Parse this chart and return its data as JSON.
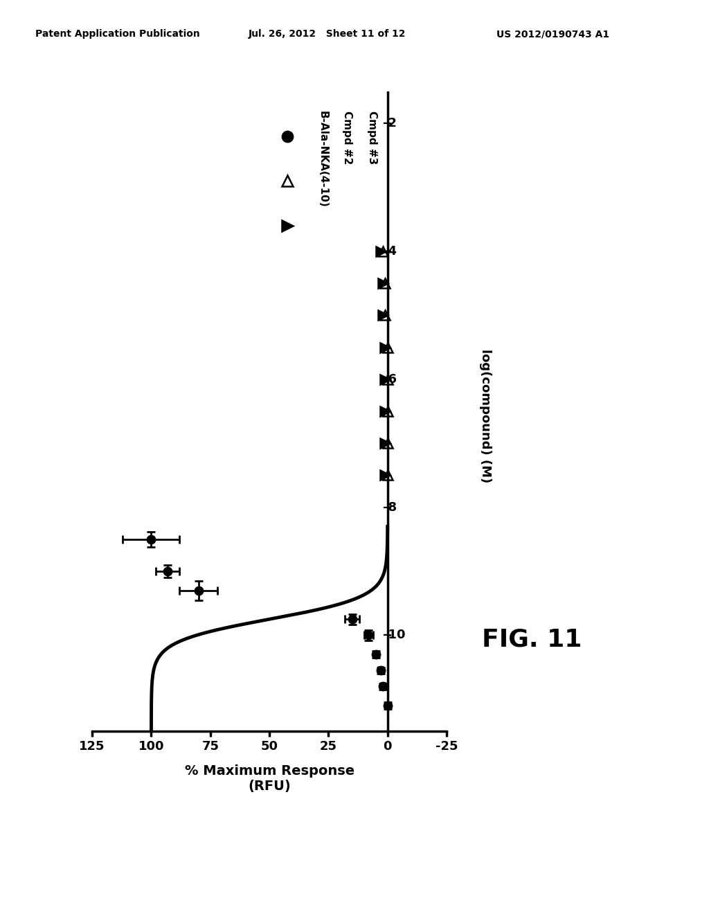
{
  "title": "FIG. 11",
  "xlabel": "% Maximum Response\n(RFU)",
  "ylabel": "log(compound) (M)",
  "xlim": [
    125,
    -25
  ],
  "ylim": [
    -11.5,
    -1.5
  ],
  "yticks": [
    -10,
    -8,
    -6,
    -4,
    -2
  ],
  "xticks": [
    125,
    100,
    75,
    50,
    25,
    0,
    -25
  ],
  "bg_color": "#ffffff",
  "curve_color": "#000000",
  "curve_linewidth": 3.5,
  "series1_label": "B-Ala-NKA(4-10)",
  "series2_label": "Cmpd #2",
  "series3_label": "Cmpd #3",
  "bala_data": [
    [
      100,
      -8.5,
      12,
      0.12
    ],
    [
      93,
      -9.0,
      5,
      0.1
    ],
    [
      80,
      -9.3,
      8,
      0.15
    ],
    [
      15,
      -9.75,
      3,
      0.08
    ],
    [
      8,
      -10.0,
      2,
      0.08
    ],
    [
      5,
      -10.3,
      1,
      0.05
    ],
    [
      3,
      -10.55,
      1,
      0.05
    ],
    [
      2,
      -10.8,
      1,
      0.05
    ],
    [
      0,
      -11.1,
      1,
      0.05
    ]
  ],
  "cmpd2_data": [
    [
      2,
      -4.0
    ],
    [
      1,
      -4.5
    ],
    [
      1,
      -5.0
    ],
    [
      0,
      -5.5
    ],
    [
      0,
      -6.0
    ],
    [
      0,
      -6.5
    ],
    [
      0,
      -7.0
    ],
    [
      0,
      -7.5
    ]
  ],
  "cmpd3_data": [
    [
      2,
      -4.0
    ],
    [
      1,
      -4.5
    ],
    [
      1,
      -5.0
    ],
    [
      0,
      -5.5
    ],
    [
      0,
      -6.0
    ],
    [
      0,
      -6.5
    ],
    [
      0,
      -7.0
    ],
    [
      0,
      -7.5
    ]
  ],
  "header_left": "Patent Application Publication",
  "header_center": "Jul. 26, 2012   Sheet 11 of 12",
  "header_right": "US 2012/0190743 A1"
}
